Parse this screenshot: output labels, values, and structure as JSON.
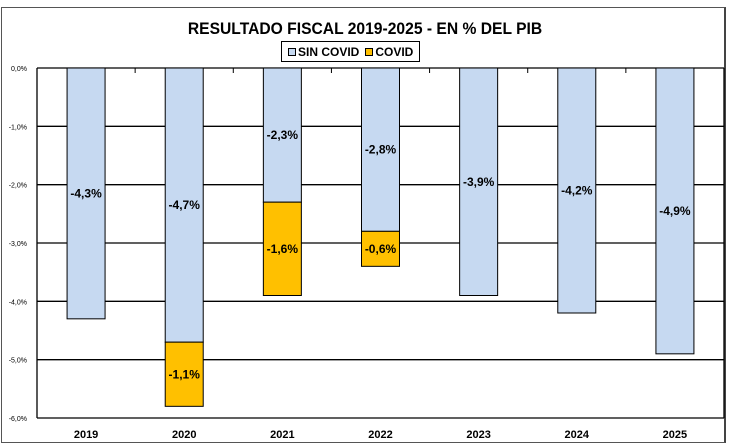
{
  "chart_data": {
    "type": "bar",
    "stacked": true,
    "title": "RESULTADO FISCAL 2019-2025  - EN % DEL PIB",
    "categories": [
      "2019",
      "2020",
      "2021",
      "2022",
      "2023",
      "2024",
      "2025"
    ],
    "series": [
      {
        "name": "SIN COVID",
        "color": "#c6d9f1",
        "values": [
          -4.3,
          -4.7,
          -2.3,
          -2.8,
          -3.9,
          -4.2,
          -4.9
        ],
        "labels": [
          "-4,3%",
          "-4,7%",
          "-2,3%",
          "-2,8%",
          "-3,9%",
          "-4,2%",
          "-4,9%"
        ]
      },
      {
        "name": "COVID",
        "color": "#ffc000",
        "values": [
          null,
          -1.1,
          -1.6,
          -0.6,
          null,
          null,
          null
        ],
        "labels": [
          null,
          "-1,1%",
          "-1,6%",
          "-0,6%",
          null,
          null,
          null
        ]
      }
    ],
    "ylim": [
      -6,
      0
    ],
    "yticks": [
      0,
      -1,
      -2,
      -3,
      -4,
      -5,
      -6
    ],
    "ytick_labels": [
      "0,0%",
      "-1,0%",
      "-2,0%",
      "-3,0%",
      "-4,0%",
      "-5,0%",
      "-6,0%"
    ],
    "grid": true,
    "legend": "top-center"
  }
}
